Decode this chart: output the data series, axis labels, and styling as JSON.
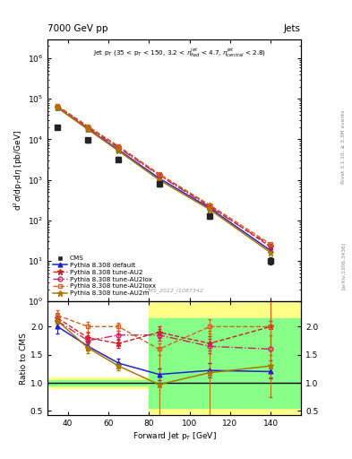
{
  "title_left": "7000 GeV pp",
  "title_right": "Jets",
  "cms_label": "CMS_2012_I1087342",
  "rivet_label": "Rivet 3.1.10, ≥ 3.3M events",
  "arxiv_label": "[arXiv:1306.3436]",
  "xlabel": "Forward Jet p$_T$ [GeV]",
  "ylabel_main": "d$^2\\sigma$/dp$_T$d$\\eta$ [pb/GeV]",
  "ylabel_ratio": "Ratio to CMS",
  "xlim": [
    30,
    155
  ],
  "ylim_main": [
    1.0,
    3000000.0
  ],
  "ylim_ratio": [
    0.42,
    2.45
  ],
  "ratio_yticks": [
    0.5,
    1.0,
    1.5,
    2.0
  ],
  "cms_x": [
    35,
    50,
    65,
    85,
    110,
    140
  ],
  "cms_y": [
    20000,
    9500,
    3200,
    800,
    130,
    10
  ],
  "cms_yerr_lo": [
    2000,
    1000,
    400,
    100,
    20,
    2
  ],
  "cms_yerr_hi": [
    2000,
    1000,
    400,
    100,
    20,
    2
  ],
  "pythia_x": [
    35,
    50,
    65,
    85,
    110,
    140
  ],
  "default_y": [
    60000,
    18000,
    5500,
    1100,
    200,
    18
  ],
  "au2_y": [
    65000,
    20000,
    6500,
    1350,
    230,
    22
  ],
  "au2lox_y": [
    63000,
    19000,
    6200,
    1300,
    215,
    24
  ],
  "au2loxx_y": [
    67000,
    21000,
    6800,
    1400,
    240,
    26
  ],
  "au2m_y": [
    61000,
    17500,
    5200,
    1000,
    185,
    16
  ],
  "ratio_default_y": [
    2.0,
    1.65,
    1.35,
    1.15,
    1.22,
    1.2
  ],
  "ratio_au2_y": [
    2.15,
    1.8,
    1.7,
    1.9,
    1.7,
    2.0
  ],
  "ratio_au2lox_y": [
    2.1,
    1.75,
    1.85,
    1.85,
    1.65,
    1.6
  ],
  "ratio_au2loxx_y": [
    2.2,
    2.0,
    2.0,
    1.6,
    2.0,
    2.0
  ],
  "ratio_au2m_y": [
    2.1,
    1.62,
    1.3,
    0.97,
    1.18,
    1.3
  ],
  "ratio_default_yerr": [
    0.12,
    0.08,
    0.08,
    0.1,
    0.13,
    0.12
  ],
  "ratio_au2_yerr": [
    0.1,
    0.09,
    0.07,
    0.1,
    0.13,
    0.6
  ],
  "ratio_au2lox_yerr": [
    0.1,
    0.09,
    0.07,
    0.1,
    0.13,
    0.5
  ],
  "ratio_au2loxx_yerr": [
    0.1,
    0.09,
    0.07,
    0.1,
    0.13,
    0.5
  ],
  "ratio_au2m_yerr": [
    0.1,
    0.09,
    0.07,
    0.65,
    0.75,
    0.55
  ],
  "color_default": "#2222cc",
  "color_au2": "#cc2222",
  "color_au2lox": "#cc2266",
  "color_au2loxx": "#cc6622",
  "color_au2m": "#aa7700",
  "color_cms": "#222222",
  "bg_yellow": "#ffff88",
  "bg_green": "#88ff88",
  "band1_xlo": 80,
  "band1_xhi": 110,
  "band2_xlo": 110,
  "band2_xhi": 155,
  "band_ylo_yellow": 0.42,
  "band_yhi_yellow": 2.45,
  "band_ylo_green": 0.55,
  "band_yhi_green": 2.15,
  "lband_xlo": 30,
  "lband_xhi": 80,
  "lband_ylo_yellow": 0.9,
  "lband_yhi_yellow": 1.1,
  "lband_ylo_green": 0.95,
  "lband_yhi_green": 1.05
}
